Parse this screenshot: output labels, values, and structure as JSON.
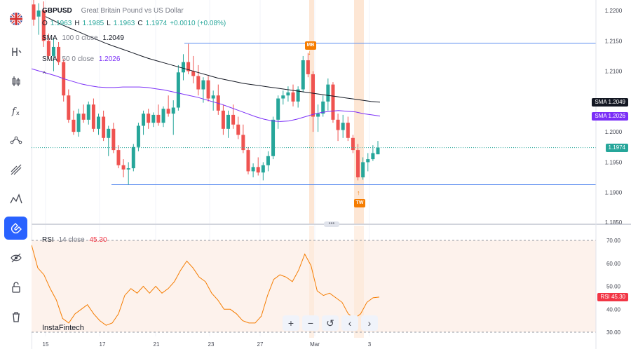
{
  "sidebar": {
    "items": [
      {
        "name": "flag-uk-icon",
        "active": false
      },
      {
        "name": "crosshair-h-icon",
        "active": false
      },
      {
        "name": "candles-icon",
        "active": false
      },
      {
        "name": "fx-icon",
        "active": false
      },
      {
        "name": "trendline-icon",
        "active": false
      },
      {
        "name": "fib-icon",
        "active": false
      },
      {
        "name": "pattern-icon",
        "active": false
      },
      {
        "name": "magnet-icon",
        "active": true
      },
      {
        "name": "hide-drawings-icon",
        "active": false
      },
      {
        "name": "lock-icon",
        "active": false
      },
      {
        "name": "trash-icon",
        "active": false
      }
    ]
  },
  "header": {
    "symbol": "GBPUSD",
    "description": "Great Britain Pound vs US Dollar",
    "ohlc": [
      {
        "k": "O",
        "v": "1.1963"
      },
      {
        "k": "H",
        "v": "1.1985"
      },
      {
        "k": "L",
        "v": "1.1963"
      },
      {
        "k": "C",
        "v": "1.1974"
      }
    ],
    "change": "+0.0010 (+0.08%)",
    "sma100": {
      "label": "SMA",
      "params": "100 0 close",
      "value": "1.2049"
    },
    "sma50": {
      "label": "SMA",
      "params": "50 0 close",
      "value": "1.2026"
    },
    "collapse_glyph": "^"
  },
  "rsi_legend": {
    "label": "RSI",
    "params": "14 close",
    "value": "45.30"
  },
  "price_axis": {
    "ticks": [
      "1.2200",
      "1.2150",
      "1.2100",
      "1.2050",
      "1.2000",
      "1.1950",
      "1.1900",
      "1.1850"
    ],
    "tags": [
      {
        "label": "SMA",
        "value": "1.2049",
        "color": "#131722"
      },
      {
        "label": "SMA",
        "value": "1.2026",
        "color": "#7b2ff7"
      },
      {
        "label": "",
        "value": "1.1974",
        "color": "#26a69a"
      }
    ]
  },
  "rsi_axis": {
    "ticks": [
      "70.00",
      "60.00",
      "50.00",
      "40.00",
      "30.00"
    ],
    "tag": {
      "label": "RSI",
      "value": "45.30",
      "color": "#f23645"
    }
  },
  "date_axis": {
    "labels": [
      "15",
      "17",
      "21",
      "23",
      "27",
      "Mar",
      "3"
    ]
  },
  "events": [
    {
      "code": "MB",
      "direction": "down"
    },
    {
      "code": "TW",
      "direction": "up"
    }
  ],
  "toolbar": [
    {
      "name": "zoom-in-button",
      "glyph": "+"
    },
    {
      "name": "zoom-out-button",
      "glyph": "−"
    },
    {
      "name": "reset-button",
      "glyph": "↺"
    },
    {
      "name": "scroll-left-button",
      "glyph": "‹"
    },
    {
      "name": "scroll-right-button",
      "glyph": "›"
    }
  ],
  "divider_glyph": "•••",
  "watermark": "InstaFintech",
  "colors": {
    "up": "#26a69a",
    "down": "#ef5350",
    "sma100": "#131722",
    "sma50": "#7b2ff7",
    "rsi": "#f57c00",
    "level": "#5b8def",
    "event": "#f57c00"
  },
  "chart_data": [
    {
      "type": "candlestick",
      "title": "GBPUSD",
      "subtitle": "Great Britain Pound vs US Dollar",
      "ylim": [
        1.1845,
        1.222
      ],
      "xlabels": [
        "15",
        "17",
        "21",
        "23",
        "27",
        "Mar",
        "3"
      ],
      "candles": [
        [
          1.221,
          1.2225,
          1.2175,
          1.2185
        ],
        [
          1.219,
          1.2212,
          1.216,
          1.22
        ],
        [
          1.22,
          1.2215,
          1.214,
          1.215
        ],
        [
          1.215,
          1.2162,
          1.212,
          1.2125
        ],
        [
          1.2125,
          1.2155,
          1.21,
          1.214
        ],
        [
          1.214,
          1.2148,
          1.211,
          1.2115
        ],
        [
          1.2115,
          1.212,
          1.205,
          1.206
        ],
        [
          1.206,
          1.207,
          1.2015,
          1.202
        ],
        [
          1.202,
          1.2035,
          1.1995,
          1.2
        ],
        [
          1.2,
          1.2038,
          1.1992,
          1.203
        ],
        [
          1.203,
          1.2045,
          1.2015,
          1.202
        ],
        [
          1.202,
          1.205,
          1.2012,
          1.2045
        ],
        [
          1.2045,
          1.2055,
          1.2,
          1.2005
        ],
        [
          1.2005,
          1.203,
          1.1995,
          1.2025
        ],
        [
          1.2025,
          1.2035,
          1.1985,
          1.199
        ],
        [
          1.199,
          1.201,
          1.196,
          1.2005
        ],
        [
          1.2005,
          1.2015,
          1.1965,
          1.197
        ],
        [
          1.197,
          1.1978,
          1.194,
          1.1945
        ],
        [
          1.1945,
          1.1955,
          1.1925,
          1.1938
        ],
        [
          1.1938,
          1.195,
          1.1913,
          1.194
        ],
        [
          1.194,
          1.198,
          1.1935,
          1.1975
        ],
        [
          1.1975,
          1.2015,
          1.1968,
          1.201
        ],
        [
          1.201,
          1.2035,
          1.1995,
          1.203
        ],
        [
          1.203,
          1.2038,
          1.2005,
          1.2015
        ],
        [
          1.2015,
          1.2032,
          1.2008,
          1.2028
        ],
        [
          1.2028,
          1.2045,
          1.201,
          1.2015
        ],
        [
          1.2015,
          1.2042,
          1.2008,
          1.2038
        ],
        [
          1.2038,
          1.206,
          1.2025,
          1.203
        ],
        [
          1.203,
          1.2052,
          1.1995,
          1.204
        ],
        [
          1.204,
          1.211,
          1.2035,
          1.2098
        ],
        [
          1.2098,
          1.2128,
          1.2085,
          1.2115
        ],
        [
          1.2115,
          1.2145,
          1.2095,
          1.21
        ],
        [
          1.21,
          1.2125,
          1.208,
          1.2092
        ],
        [
          1.2092,
          1.211,
          1.206,
          1.207
        ],
        [
          1.207,
          1.209,
          1.2048,
          1.2085
        ],
        [
          1.2085,
          1.2092,
          1.205,
          1.2055
        ],
        [
          1.2055,
          1.2068,
          1.2035,
          1.206
        ],
        [
          1.206,
          1.2078,
          1.2028,
          1.2035
        ],
        [
          1.2035,
          1.2045,
          1.1995,
          1.2005
        ],
        [
          1.2005,
          1.2035,
          1.199,
          1.2028
        ],
        [
          1.2028,
          1.2045,
          1.2005,
          1.2012
        ],
        [
          1.2012,
          1.2025,
          1.1988,
          1.1995
        ],
        [
          1.1995,
          1.2012,
          1.1965,
          1.197
        ],
        [
          1.197,
          1.1975,
          1.193,
          1.1935
        ],
        [
          1.1935,
          1.1948,
          1.1925,
          1.1942
        ],
        [
          1.1942,
          1.1958,
          1.1928,
          1.1933
        ],
        [
          1.1933,
          1.195,
          1.192,
          1.1945
        ],
        [
          1.1945,
          1.1968,
          1.1935,
          1.196
        ],
        [
          1.196,
          1.2025,
          1.1955,
          1.202
        ],
        [
          1.202,
          1.206,
          1.2005,
          1.2055
        ],
        [
          1.2055,
          1.2068,
          1.2045,
          1.206
        ],
        [
          1.206,
          1.2075,
          1.205,
          1.2065
        ],
        [
          1.2065,
          1.2078,
          1.2042,
          1.205
        ],
        [
          1.205,
          1.2075,
          1.204,
          1.207
        ],
        [
          1.207,
          1.2125,
          1.2065,
          1.2118
        ],
        [
          1.2118,
          1.213,
          1.209,
          1.2095
        ],
        [
          1.2095,
          1.21,
          1.2,
          1.2025
        ],
        [
          1.2025,
          1.2045,
          1.2,
          1.203
        ],
        [
          1.203,
          1.206,
          1.2025,
          1.205
        ],
        [
          1.205,
          1.2088,
          1.2035,
          1.2078
        ],
        [
          1.2078,
          1.2082,
          1.2015,
          1.202
        ],
        [
          1.202,
          1.203,
          1.1985,
          1.2003
        ],
        [
          1.2003,
          1.2028,
          1.199,
          1.2015
        ],
        [
          1.2015,
          1.2025,
          1.1985,
          1.199
        ],
        [
          1.199,
          1.1995,
          1.1965,
          1.197
        ],
        [
          1.197,
          1.198,
          1.192,
          1.1925
        ],
        [
          1.1925,
          1.1958,
          1.1921,
          1.195
        ],
        [
          1.195,
          1.1965,
          1.1935,
          1.1955
        ],
        [
          1.1955,
          1.1978,
          1.1952,
          1.1965
        ],
        [
          1.1963,
          1.1985,
          1.1963,
          1.1974
        ]
      ],
      "series": [
        {
          "name": "SMA 100",
          "values": [
            1.219,
            1.2183,
            1.2176,
            1.217,
            1.2164,
            1.2158,
            1.2152,
            1.2146,
            1.2141,
            1.2136,
            1.2131,
            1.2126,
            1.2121,
            1.2117,
            1.2113,
            1.2109,
            1.2105,
            1.2101,
            1.2097,
            1.2093,
            1.2089,
            1.2086,
            1.2083,
            1.208,
            1.2078,
            1.2076,
            1.2074,
            1.2072,
            1.207,
            1.2068,
            1.2066,
            1.2064,
            1.2062,
            1.206,
            1.2058,
            1.2056,
            1.2054,
            1.2052,
            1.205,
            1.2049
          ]
        },
        {
          "name": "SMA 50",
          "values": [
            1.2104,
            1.21,
            1.2096,
            1.2092,
            1.2087,
            1.2083,
            1.2079,
            1.2076,
            1.2074,
            1.2073,
            1.2073,
            1.2074,
            1.2074,
            1.2074,
            1.2073,
            1.2071,
            1.2069,
            1.2066,
            1.2063,
            1.206,
            1.2057,
            1.2053,
            1.2049,
            1.2045,
            1.204,
            1.2035,
            1.203,
            1.2025,
            1.2021,
            1.2018,
            1.2017,
            1.2018,
            1.2021,
            1.2025,
            1.2029,
            1.2032,
            1.2034,
            1.2035,
            1.2034,
            1.2033,
            1.203,
            1.2028,
            1.2026
          ]
        }
      ],
      "levels": [
        1.2146,
        1.1913
      ]
    },
    {
      "type": "line",
      "title": "RSI",
      "subtitle": "14 close",
      "ylim": [
        28,
        74
      ],
      "hlines": [
        70,
        30
      ],
      "series": [
        {
          "name": "RSI",
          "values": [
            68,
            58,
            55,
            49,
            44,
            36,
            34,
            38,
            40,
            42,
            38,
            35,
            33,
            34,
            38,
            46,
            49,
            47,
            50,
            47,
            50,
            47,
            49,
            52,
            57,
            61,
            58,
            54,
            52,
            47,
            44,
            40,
            40,
            38,
            35,
            34,
            34,
            37,
            46,
            53,
            55,
            54,
            52,
            57,
            64,
            59,
            48,
            46,
            47,
            45,
            43,
            38,
            36,
            38,
            43,
            45,
            45.3
          ]
        }
      ]
    }
  ]
}
